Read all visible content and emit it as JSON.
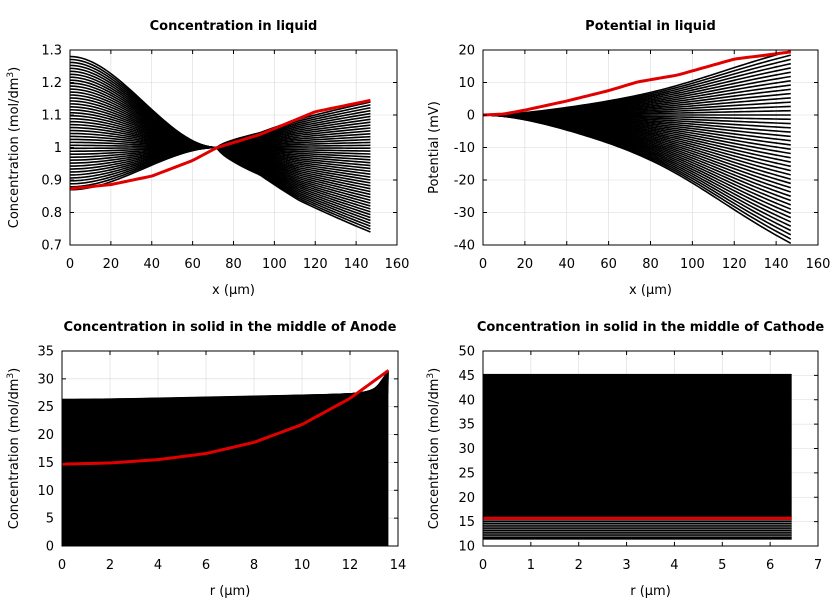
{
  "chart_data": [
    {
      "id": "liquid-concentration",
      "type": "line",
      "title": "Concentration in liquid",
      "xlabel": "x (µm)",
      "ylabel_main": "Concentration (mol/dm",
      "ylabel_sup": "3",
      "ylabel_end": ")",
      "xlim": [
        0,
        160
      ],
      "ylim": [
        0.7,
        1.3
      ],
      "xticks": [
        0,
        20,
        40,
        60,
        80,
        100,
        120,
        140,
        160
      ],
      "yticks": [
        0.7,
        0.8,
        0.9,
        1,
        1.1,
        1.2,
        1.3
      ],
      "ytick_labels": [
        "0.7",
        "0.8",
        "0.9",
        "1",
        "1.1",
        "1.2",
        "1.3"
      ],
      "grid": true,
      "x_end": 147,
      "crossover": {
        "x": 72,
        "y": 1.0
      },
      "kink_x": 93,
      "series_black": {
        "count": 46,
        "left_range": [
          0.87,
          1.28
        ],
        "right_range": [
          0.74,
          1.14
        ]
      },
      "highlight": {
        "color": "#e00000",
        "x": [
          0,
          20,
          40,
          60,
          72,
          93,
          120,
          147
        ],
        "y": [
          0.873,
          0.886,
          0.912,
          0.96,
          1.0,
          1.04,
          1.11,
          1.145
        ]
      }
    },
    {
      "id": "liquid-potential",
      "type": "line",
      "title": "Potential in liquid",
      "xlabel": "x (µm)",
      "ylabel_main": "Potential (mV)",
      "ylabel_sup": "",
      "ylabel_end": "",
      "xlim": [
        0,
        160
      ],
      "ylim": [
        -40,
        20
      ],
      "xticks": [
        0,
        20,
        40,
        60,
        80,
        100,
        120,
        140,
        160
      ],
      "yticks": [
        -40,
        -30,
        -20,
        -10,
        0,
        10,
        20
      ],
      "ytick_labels": [
        "-40",
        "-30",
        "-20",
        "-10",
        "0",
        "10",
        "20"
      ],
      "grid": true,
      "x_end": 147,
      "kink_x": [
        74,
        93
      ],
      "series_black": {
        "count": 46,
        "end_range": [
          -39,
          19.5
        ]
      },
      "highlight": {
        "color": "#e00000",
        "x": [
          0,
          10,
          20,
          40,
          60,
          74,
          93,
          120,
          147
        ],
        "y": [
          0,
          0.3,
          1.5,
          4.3,
          7.5,
          10.2,
          12.3,
          17.2,
          19.4
        ]
      }
    },
    {
      "id": "solid-anode",
      "type": "line",
      "title": "Concentration in solid in the middle of Anode",
      "xlabel": "r (µm)",
      "ylabel_main": "Concentration (mol/dm",
      "ylabel_sup": "3",
      "ylabel_end": ")",
      "xlim": [
        0,
        14
      ],
      "ylim": [
        0,
        35
      ],
      "xticks": [
        0,
        2,
        4,
        6,
        8,
        10,
        12,
        14
      ],
      "yticks": [
        0,
        5,
        10,
        15,
        20,
        25,
        30,
        35
      ],
      "ytick_labels": [
        "0",
        "5",
        "10",
        "15",
        "20",
        "25",
        "30",
        "35"
      ],
      "grid": true,
      "x_end": 13.6,
      "fill_top": {
        "start": 26.3,
        "end": 27.5
      },
      "series_black": {
        "count": 40,
        "center_range": [
          14.7,
          26.3
        ],
        "surface_range": [
          27.5,
          31.5
        ]
      },
      "highlight": {
        "color": "#e00000",
        "x": [
          0,
          2,
          4,
          6,
          8,
          10,
          12,
          13.6
        ],
        "y": [
          14.7,
          14.9,
          15.5,
          16.6,
          18.6,
          21.8,
          26.5,
          31.5
        ]
      }
    },
    {
      "id": "solid-cathode",
      "type": "line",
      "title": "Concentration in solid in the middle of Cathode",
      "xlabel": "r (µm)",
      "ylabel_main": "Concentration (mol/dm",
      "ylabel_sup": "3",
      "ylabel_end": ")",
      "xlim": [
        0,
        7
      ],
      "ylim": [
        10,
        50
      ],
      "xticks": [
        0,
        1,
        2,
        3,
        4,
        5,
        6,
        7
      ],
      "yticks": [
        10,
        15,
        20,
        25,
        30,
        35,
        40,
        45,
        50
      ],
      "ytick_labels": [
        "10",
        "15",
        "20",
        "25",
        "30",
        "35",
        "40",
        "45",
        "50"
      ],
      "grid": true,
      "x_end": 6.45,
      "fill_range": [
        11.3,
        45.3
      ],
      "series_black": {
        "count": 8,
        "level_range": [
          12.0,
          15.3
        ]
      },
      "highlight": {
        "color": "#e00000",
        "x": [
          0,
          6.45
        ],
        "y": [
          15.7,
          15.7
        ]
      }
    }
  ]
}
